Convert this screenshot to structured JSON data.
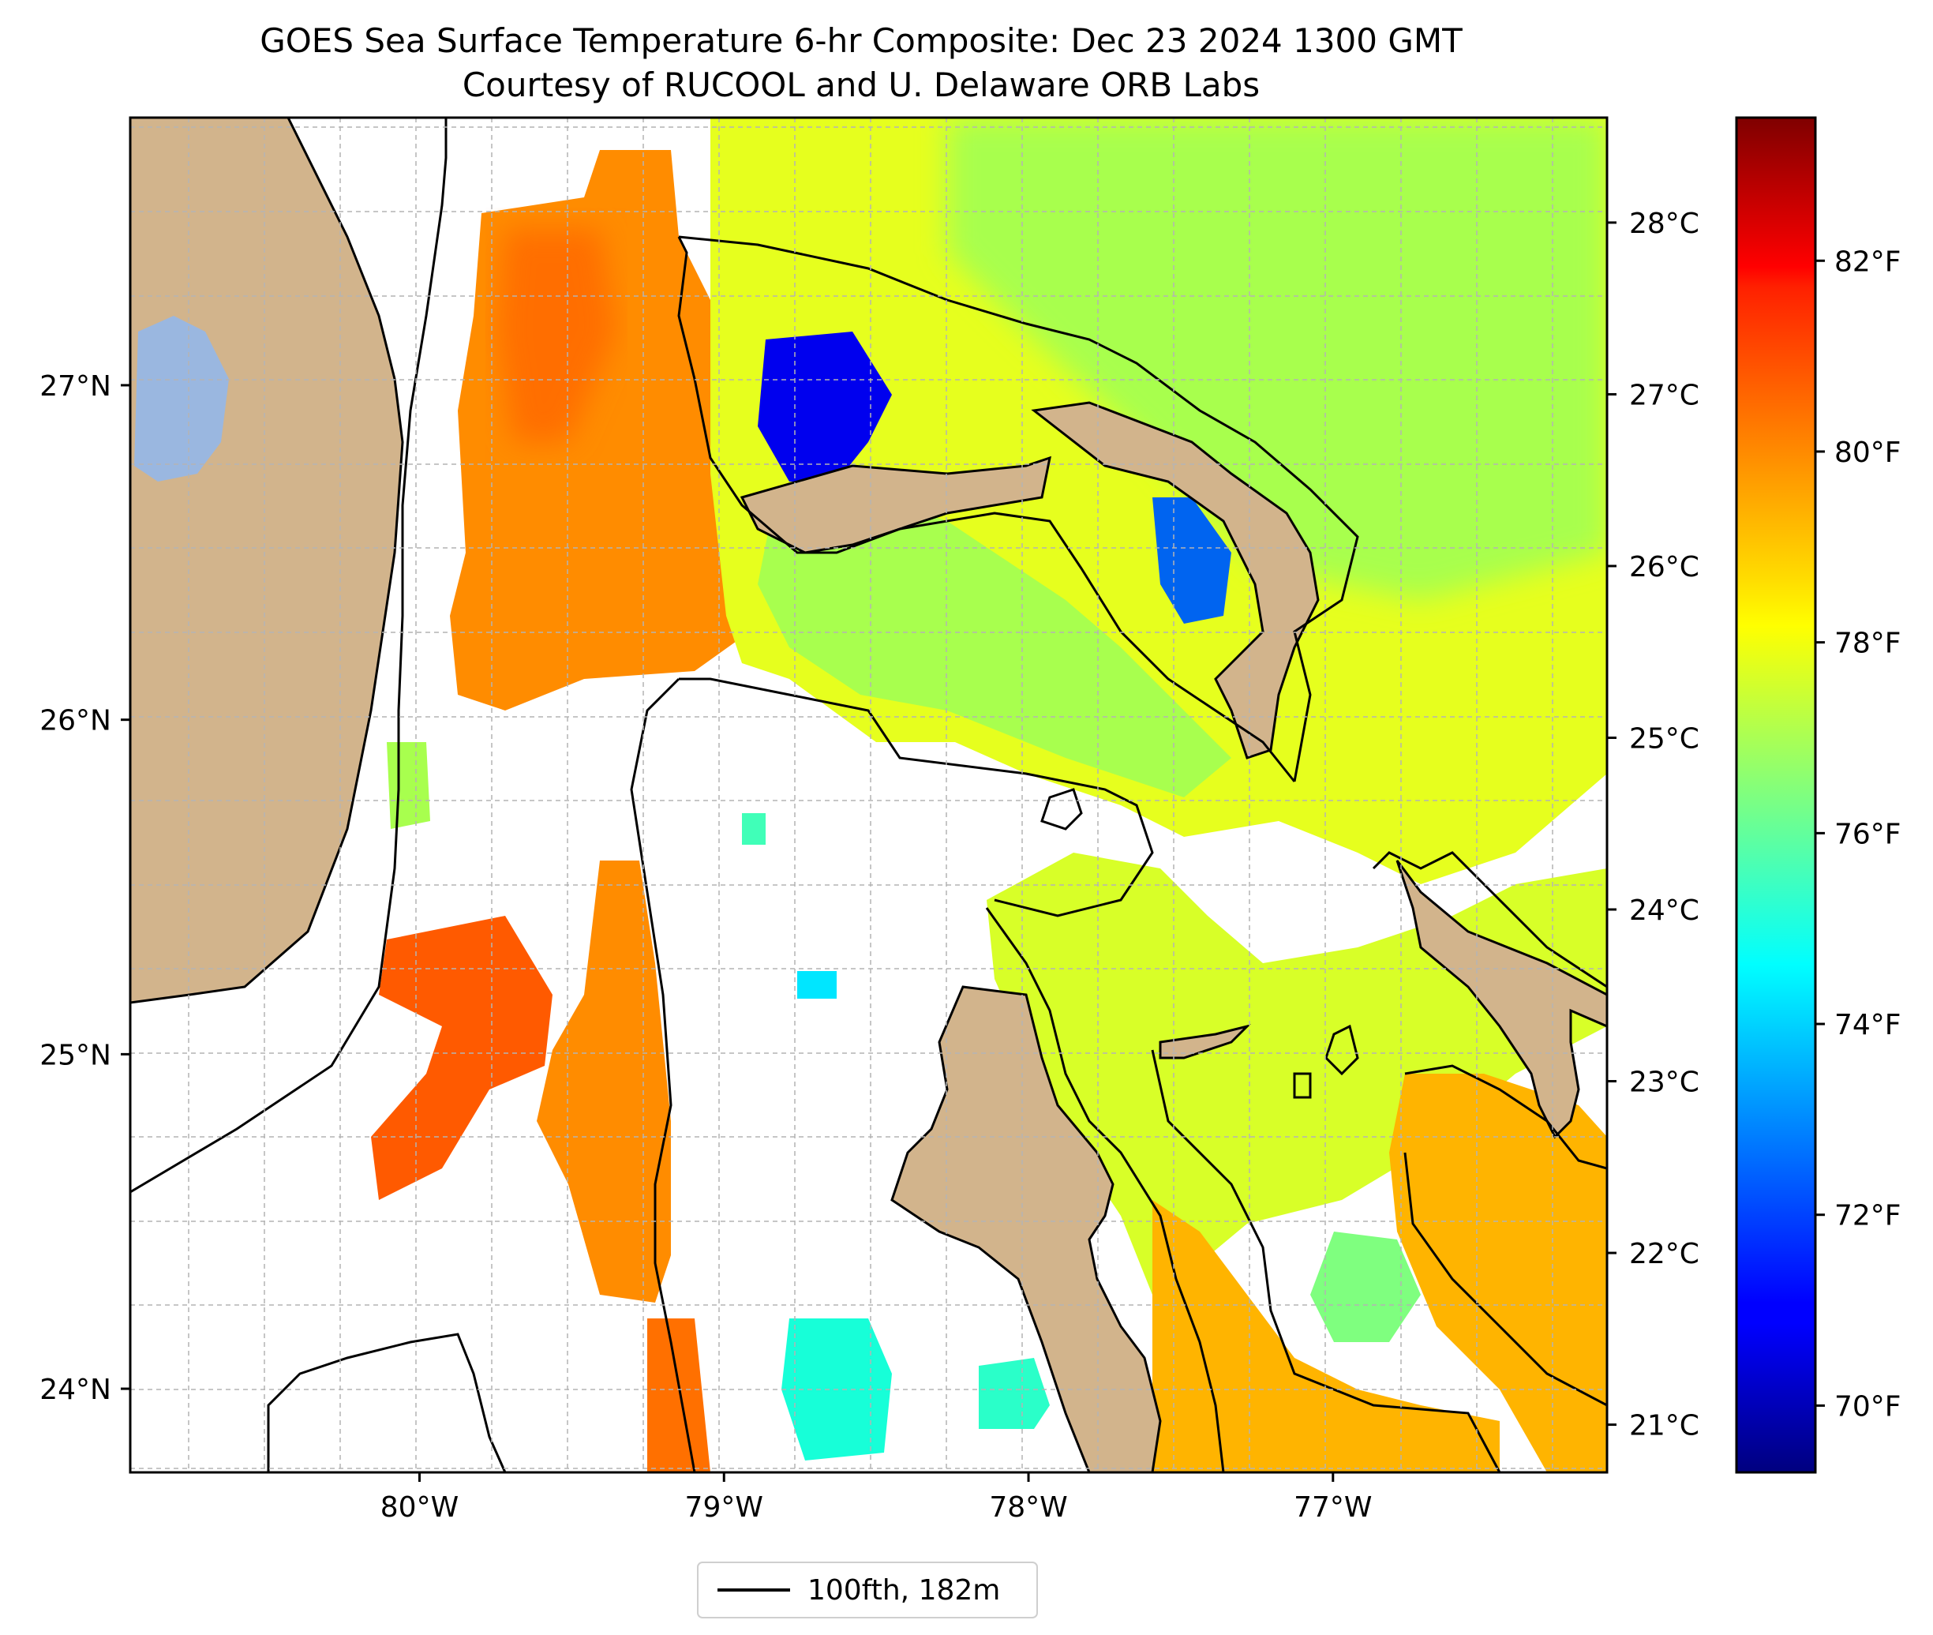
{
  "title": {
    "line1": "GOES Sea Surface Temperature 6-hr Composite: Dec 23 2024 1300 GMT",
    "line2": "Courtesy of RUCOOL and U. Delaware ORB Labs"
  },
  "map": {
    "lon_range": [
      -80.95,
      -76.1
    ],
    "lat_range": [
      23.75,
      27.8
    ],
    "lon_ticks": [
      {
        "value": -80,
        "label": "80°W"
      },
      {
        "value": -79,
        "label": "79°W"
      },
      {
        "value": -78,
        "label": "78°W"
      },
      {
        "value": -77,
        "label": "77°W"
      }
    ],
    "lat_ticks": [
      {
        "value": 24,
        "label": "24°N"
      },
      {
        "value": 25,
        "label": "25°N"
      },
      {
        "value": 26,
        "label": "26°N"
      },
      {
        "value": 27,
        "label": "27°N"
      }
    ],
    "grid": true,
    "colors": {
      "land": "#d2b48c",
      "lake": "#9ab7e0",
      "coast": "#000000"
    }
  },
  "colorbar": {
    "colormap": "jet",
    "fahrenheit_range": [
      69.3,
      83.5
    ],
    "celsius_ticks": [
      {
        "value": 21,
        "label": "21°C"
      },
      {
        "value": 22,
        "label": "22°C"
      },
      {
        "value": 23,
        "label": "23°C"
      },
      {
        "value": 24,
        "label": "24°C"
      },
      {
        "value": 25,
        "label": "25°C"
      },
      {
        "value": 26,
        "label": "26°C"
      },
      {
        "value": 27,
        "label": "27°C"
      },
      {
        "value": 28,
        "label": "28°C"
      }
    ],
    "fahrenheit_ticks": [
      {
        "value": 70,
        "label": "70°F"
      },
      {
        "value": 72,
        "label": "72°F"
      },
      {
        "value": 74,
        "label": "74°F"
      },
      {
        "value": 76,
        "label": "76°F"
      },
      {
        "value": 78,
        "label": "78°F"
      },
      {
        "value": 80,
        "label": "80°F"
      },
      {
        "value": 82,
        "label": "82°F"
      }
    ]
  },
  "legend": {
    "label": "100fth, 182m"
  }
}
